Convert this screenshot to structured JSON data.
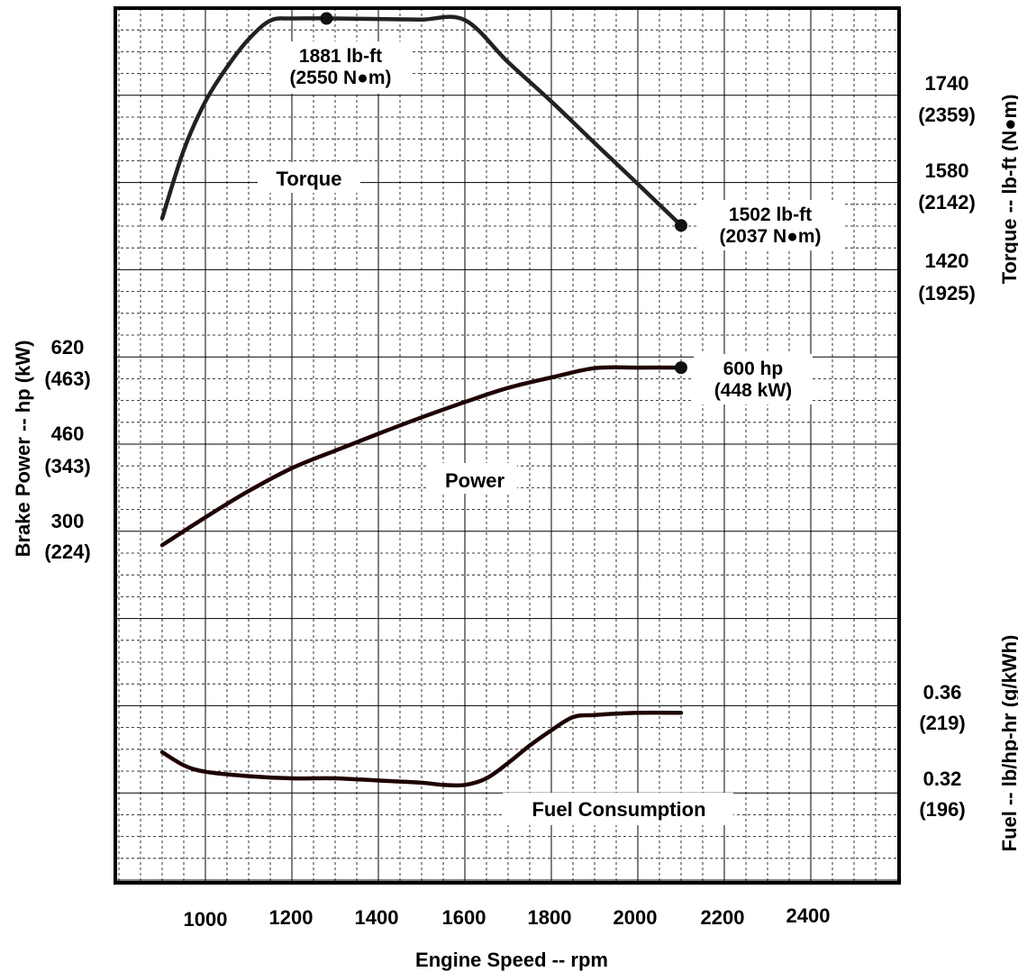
{
  "chart_data": {
    "type": "line",
    "title": "",
    "xlabel": "Engine Speed -- rpm",
    "xlim": [
      900,
      2550
    ],
    "x_ticks": [
      "1000",
      "1200",
      "1400",
      "1600",
      "1800",
      "2000",
      "2200",
      "2400"
    ],
    "left_axis": {
      "label": "Brake Power -- hp (kW)",
      "ticks": [
        {
          "hp": "620",
          "kw": "(463)"
        },
        {
          "hp": "460",
          "kw": "(343)"
        },
        {
          "hp": "300",
          "kw": "(224)"
        }
      ]
    },
    "right_torque_axis": {
      "label": "Torque -- lb-ft (N●m)",
      "ticks": [
        {
          "lbft": "1740",
          "nm": "(2359)"
        },
        {
          "lbft": "1580",
          "nm": "(2142)"
        },
        {
          "lbft": "1420",
          "nm": "(1925)"
        }
      ]
    },
    "right_fuel_axis": {
      "label": "Fuel -- lb/hp-hr (g/kWh)",
      "ticks": [
        {
          "val": "0.36",
          "gkwh": "(219)"
        },
        {
          "val": "0.32",
          "gkwh": "(196)"
        }
      ]
    },
    "grid": true,
    "series": [
      {
        "name": "Torque",
        "unit": "lb-ft",
        "x": [
          900,
          950,
          1000,
          1050,
          1100,
          1150,
          1200,
          1300,
          1400,
          1500,
          1600,
          1700,
          1800,
          1900,
          2000,
          2100
        ],
        "values": [
          1515,
          1640,
          1729,
          1792,
          1843,
          1877,
          1881,
          1881,
          1880,
          1879,
          1878,
          1801,
          1729,
          1653,
          1578,
          1502
        ]
      },
      {
        "name": "Power",
        "unit": "hp",
        "x": [
          900,
          1000,
          1100,
          1200,
          1300,
          1400,
          1500,
          1600,
          1700,
          1800,
          1900,
          2000,
          2100
        ],
        "values": [
          275,
          326,
          374,
          416,
          448,
          479,
          509,
          537,
          563,
          582,
          599,
          600,
          600
        ]
      },
      {
        "name": "Fuel Consumption",
        "unit": "lb/hp-hr",
        "x": [
          900,
          950,
          1000,
          1100,
          1200,
          1300,
          1400,
          1500,
          1550,
          1600,
          1650,
          1700,
          1750,
          1800,
          1850,
          1900,
          2000,
          2100
        ],
        "values": [
          0.339,
          0.333,
          0.33,
          0.328,
          0.327,
          0.327,
          0.326,
          0.325,
          0.324,
          0.324,
          0.327,
          0.334,
          0.342,
          0.349,
          0.355,
          0.356,
          0.357,
          0.357
        ]
      }
    ],
    "annotations": {
      "peak_torque": {
        "line1": "1881 lb-ft",
        "line2": "(2550 N●m)",
        "x": 1280,
        "value": 1881
      },
      "rated_torque": {
        "line1": "1502 lb-ft",
        "line2": "(2037 N●m)",
        "x": 2100,
        "value": 1502
      },
      "rated_power": {
        "line1": "600 hp",
        "line2": "(448 kW)",
        "x": 2100,
        "value": 600
      }
    }
  }
}
